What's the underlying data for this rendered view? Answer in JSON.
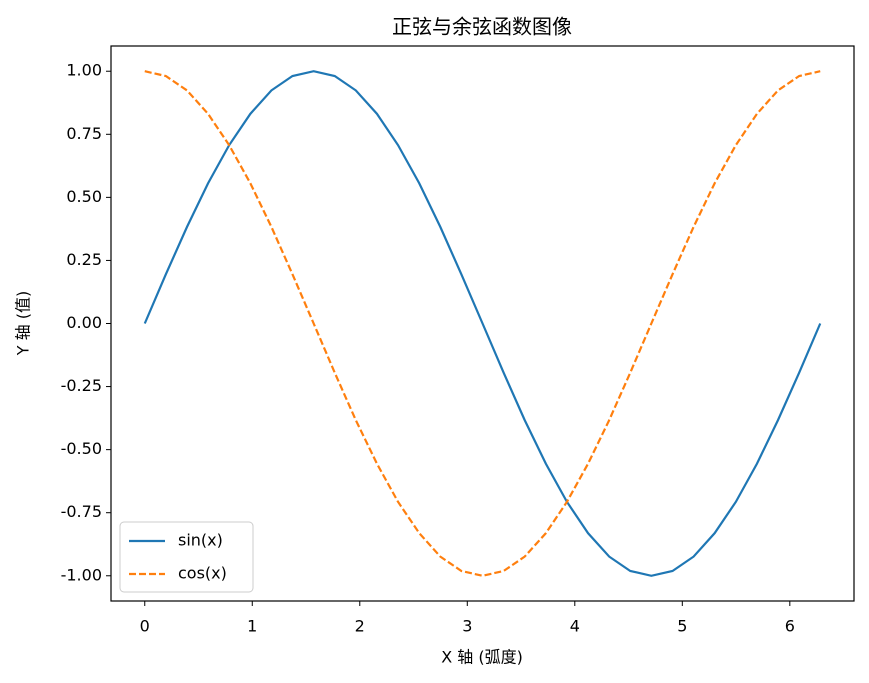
{
  "chart_data": {
    "type": "line",
    "title": "正弦与余弦函数图像",
    "x_label": "X 轴 (弧度)",
    "y_label": "Y 轴 (值)",
    "x": [
      0,
      0.196,
      0.393,
      0.589,
      0.785,
      0.982,
      1.178,
      1.374,
      1.571,
      1.767,
      1.963,
      2.16,
      2.356,
      2.553,
      2.749,
      2.945,
      3.142,
      3.338,
      3.534,
      3.731,
      3.927,
      4.123,
      4.32,
      4.516,
      4.712,
      4.909,
      5.105,
      5.301,
      5.498,
      5.694,
      5.89,
      6.087,
      6.283
    ],
    "series": [
      {
        "name": "sin(x)",
        "color": "#1f77b4",
        "dash": "solid",
        "values": [
          0,
          0.195,
          0.383,
          0.556,
          0.707,
          0.831,
          0.924,
          0.981,
          1,
          0.981,
          0.924,
          0.831,
          0.707,
          0.556,
          0.383,
          0.195,
          0,
          -0.195,
          -0.383,
          -0.556,
          -0.707,
          -0.831,
          -0.924,
          -0.981,
          -1,
          -0.981,
          -0.924,
          -0.831,
          -0.707,
          -0.556,
          -0.383,
          -0.195,
          0
        ]
      },
      {
        "name": "cos(x)",
        "color": "#ff7f0e",
        "dash": "dashed",
        "values": [
          1,
          0.981,
          0.924,
          0.831,
          0.707,
          0.556,
          0.383,
          0.195,
          0,
          -0.195,
          -0.383,
          -0.556,
          -0.707,
          -0.831,
          -0.924,
          -0.981,
          -1,
          -0.981,
          -0.924,
          -0.831,
          -0.707,
          -0.556,
          -0.383,
          -0.195,
          0,
          0.195,
          0.383,
          0.556,
          0.707,
          0.831,
          0.924,
          0.981,
          1
        ]
      }
    ],
    "xlim": [
      -0.314,
      6.597
    ],
    "ylim": [
      -1.1,
      1.1
    ],
    "xticks": [
      0,
      1,
      2,
      3,
      4,
      5,
      6
    ],
    "yticks": [
      {
        "value": -1,
        "label": "-1.00"
      },
      {
        "value": -0.75,
        "label": "-0.75"
      },
      {
        "value": -0.5,
        "label": "-0.50"
      },
      {
        "value": -0.25,
        "label": "-0.25"
      },
      {
        "value": 0,
        "label": "0.00"
      },
      {
        "value": 0.25,
        "label": "0.25"
      },
      {
        "value": 0.5,
        "label": "0.50"
      },
      {
        "value": 0.75,
        "label": "0.75"
      },
      {
        "value": 1,
        "label": "1.00"
      }
    ],
    "grid": false,
    "legend": "lower left"
  }
}
